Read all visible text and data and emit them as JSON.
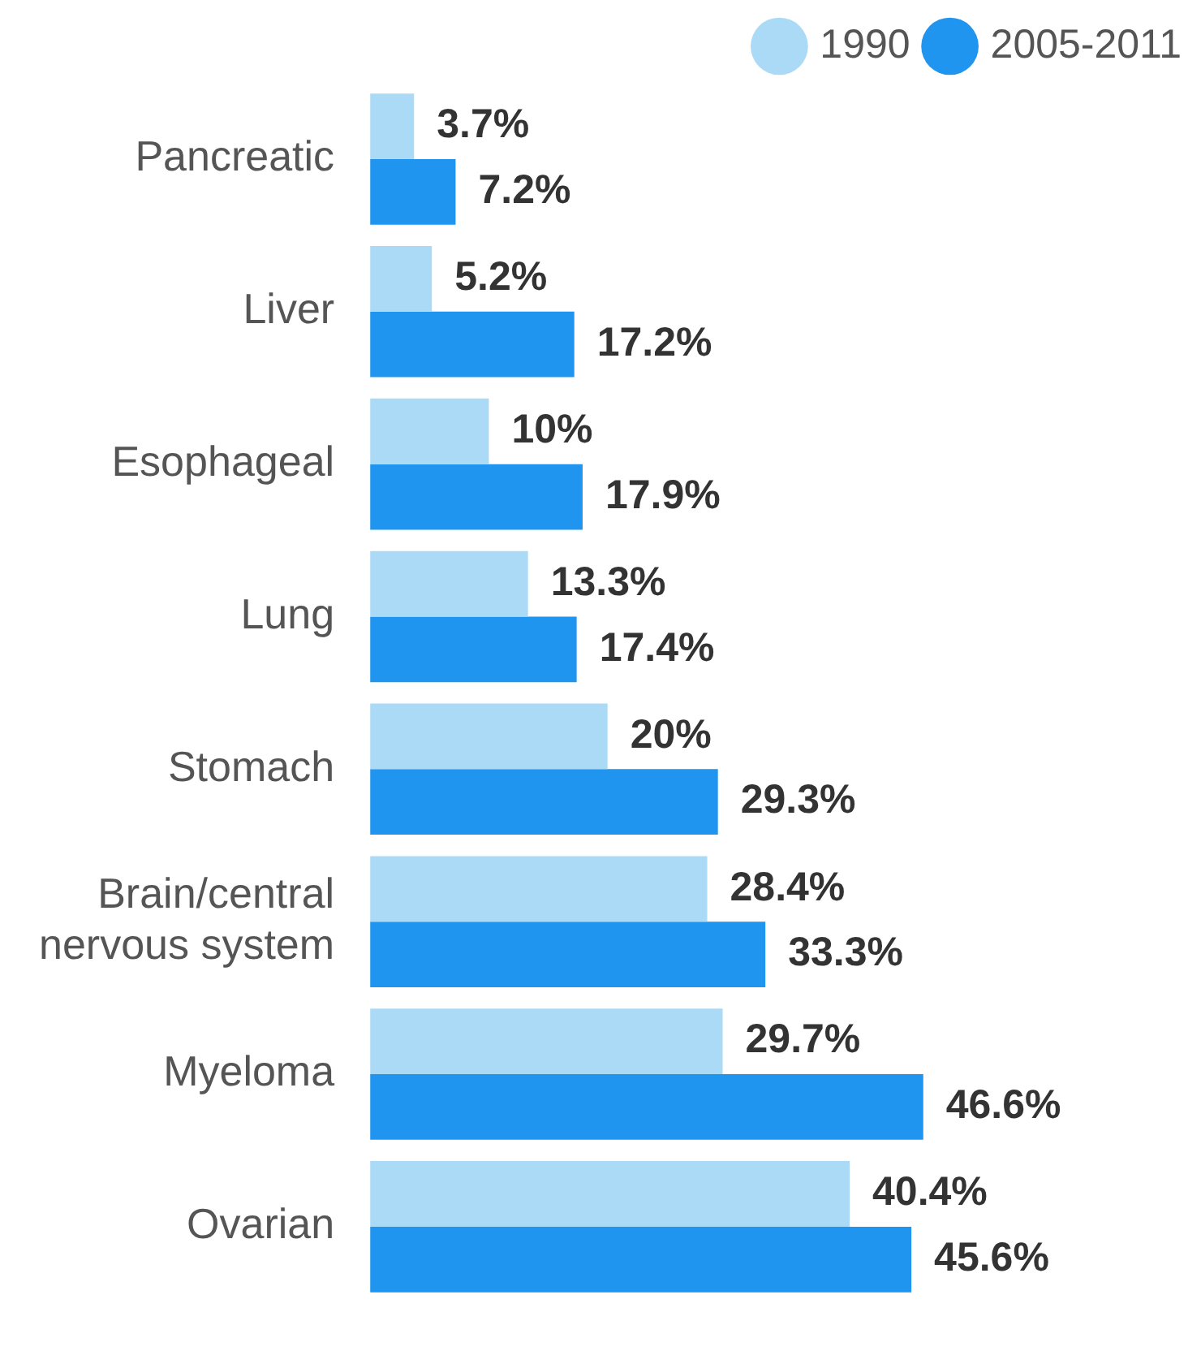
{
  "chart_data": {
    "type": "bar",
    "orientation": "horizontal",
    "categories": [
      "Pancreatic",
      "Liver",
      "Esophageal",
      "Lung",
      "Stomach",
      "Brain/central nervous system",
      "Myeloma",
      "Ovarian"
    ],
    "series": [
      {
        "name": "1990",
        "color": "#abdaf7",
        "values": [
          3.7,
          5.2,
          10,
          13.3,
          20,
          28.4,
          29.7,
          40.4
        ],
        "value_labels": [
          "3.7%",
          "5.2%",
          "10%",
          "13.3%",
          "20%",
          "28.4%",
          "29.7%",
          "40.4%"
        ]
      },
      {
        "name": "2005-2011",
        "color": "#1f95ef",
        "values": [
          7.2,
          17.2,
          17.9,
          17.4,
          29.3,
          33.3,
          46.6,
          45.6
        ],
        "value_labels": [
          "7.2%",
          "17.2%",
          "17.9%",
          "17.4%",
          "29.3%",
          "33.3%",
          "46.6%",
          "45.6%"
        ]
      }
    ],
    "tick_labels": "y",
    "legend": "top right"
  }
}
